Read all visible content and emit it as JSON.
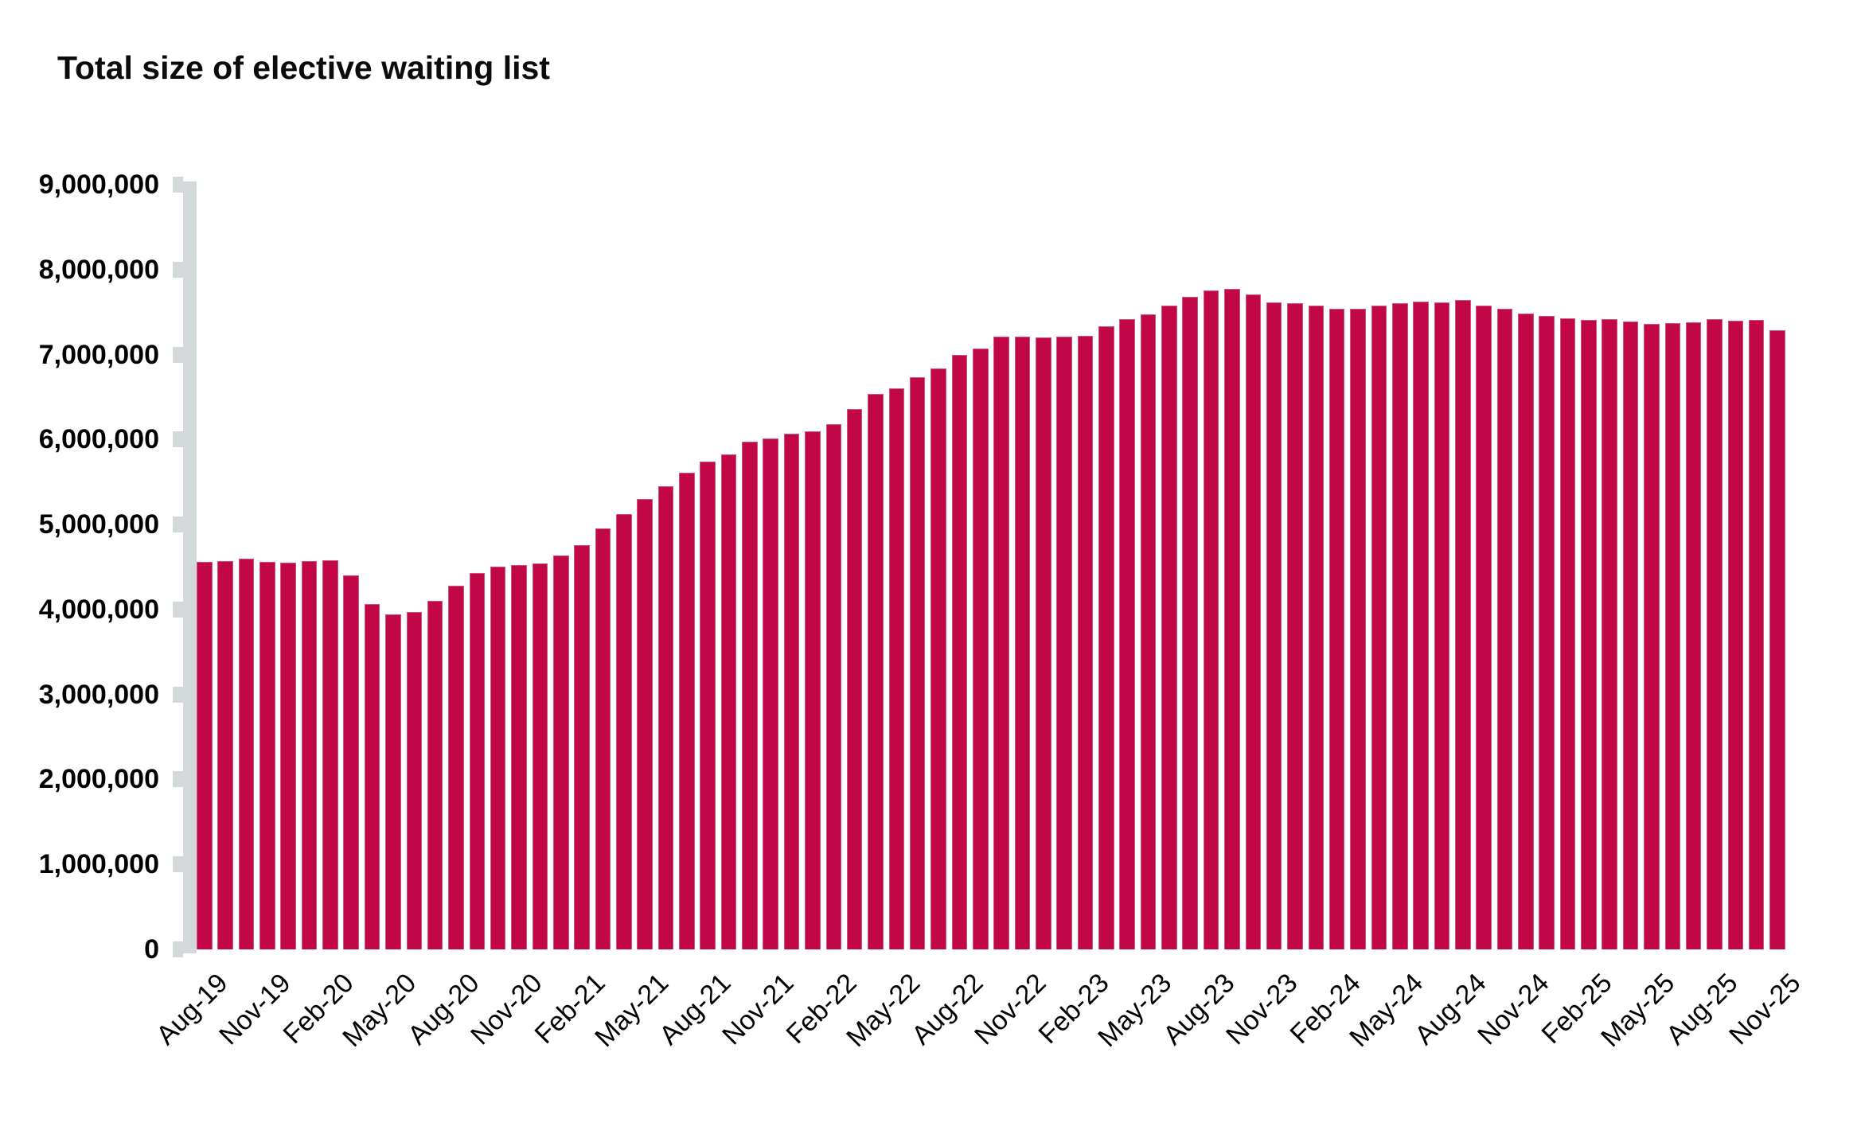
{
  "chart_data": {
    "type": "bar",
    "title": "Total size of elective waiting list",
    "xlabel": "",
    "ylabel": "",
    "legend": "none",
    "grid": false,
    "ylim": [
      0,
      9000000
    ],
    "y_tick_step": 1000000,
    "y_tick_labels": [
      "0",
      "1,000,000",
      "2,000,000",
      "3,000,000",
      "4,000,000",
      "5,000,000",
      "6,000,000",
      "7,000,000",
      "8,000,000",
      "9,000,000"
    ],
    "x_tick_every": 3,
    "bar_color": "#C10748",
    "bar_edge_color": "#CF577D",
    "axis_color": "#D3D8DB",
    "categories": [
      "Aug-19",
      "Sep-19",
      "Oct-19",
      "Nov-19",
      "Dec-19",
      "Jan-20",
      "Feb-20",
      "Mar-20",
      "Apr-20",
      "May-20",
      "Jun-20",
      "Jul-20",
      "Aug-20",
      "Sep-20",
      "Oct-20",
      "Nov-20",
      "Dec-20",
      "Jan-21",
      "Feb-21",
      "Mar-21",
      "Apr-21",
      "May-21",
      "Jun-21",
      "Jul-21",
      "Aug-21",
      "Sep-21",
      "Oct-21",
      "Nov-21",
      "Dec-21",
      "Jan-22",
      "Feb-22",
      "Mar-22",
      "Apr-22",
      "May-22",
      "Jun-22",
      "Jul-22",
      "Aug-22",
      "Sep-22",
      "Oct-22",
      "Nov-22",
      "Dec-22",
      "Jan-23",
      "Feb-23",
      "Mar-23",
      "Apr-23",
      "May-23",
      "Jun-23",
      "Jul-23",
      "Aug-23",
      "Sep-23",
      "Oct-23",
      "Nov-23",
      "Dec-23",
      "Jan-24",
      "Feb-24",
      "Mar-24",
      "Apr-24",
      "May-24",
      "Jun-24",
      "Jul-24",
      "Aug-24",
      "Sep-24",
      "Oct-24",
      "Nov-24",
      "Dec-24",
      "Jan-25",
      "Feb-25",
      "Mar-25",
      "Apr-25",
      "May-25",
      "Jun-25",
      "Jul-25",
      "Aug-25",
      "Sep-25",
      "Oct-25",
      "Nov-25"
    ],
    "values": [
      4557000,
      4573000,
      4600000,
      4561000,
      4556000,
      4573000,
      4578000,
      4404000,
      4062000,
      3947000,
      3968000,
      4105000,
      4278000,
      4432000,
      4506000,
      4524000,
      4543000,
      4634000,
      4757000,
      4950000,
      5122000,
      5303000,
      5454000,
      5614000,
      5739000,
      5830000,
      5977000,
      6009000,
      6071000,
      6097000,
      6181000,
      6363000,
      6533000,
      6607000,
      6734000,
      6840000,
      7000000,
      7073000,
      7213000,
      7214000,
      7199000,
      7213000,
      7224000,
      7331000,
      7420000,
      7471000,
      7575000,
      7679000,
      7755000,
      7770000,
      7708000,
      7611000,
      7602000,
      7580000,
      7543000,
      7541000,
      7572000,
      7602000,
      7619000,
      7617000,
      7641000,
      7572000,
      7540000,
      7481000,
      7459000,
      7425000,
      7404000,
      7421000,
      7392000,
      7360000,
      7368000,
      7380000,
      7413000,
      7399000,
      7405000,
      7290000
    ]
  }
}
